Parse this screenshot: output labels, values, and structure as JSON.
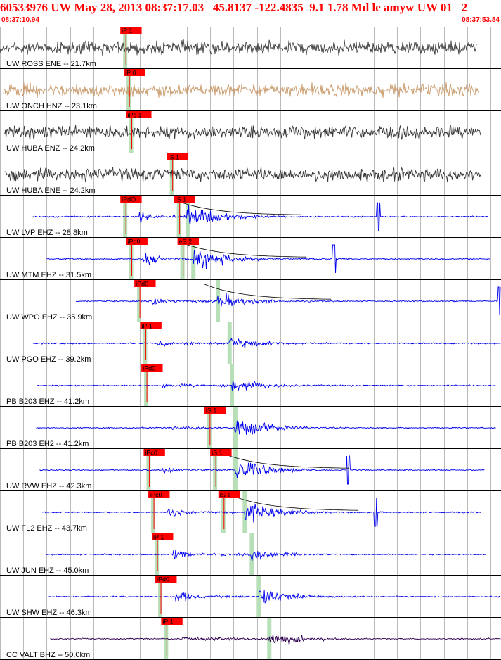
{
  "header": {
    "title": "60533976 UW May 28, 2013 08:37:17.03   45.8137 -122.4835  9.1 1.78 Md le amyw UW 01   2",
    "start_time": "08:37:10.94",
    "end_time": "08:37:53.84"
  },
  "colors": {
    "header_text": "#ff0000",
    "pick_flag": "#ff0000",
    "pick_band": "#b8e0b8",
    "trace_default": "#3a3a3a",
    "trace_blue": "#0000ee",
    "trace_tan": "#c89868",
    "trace_purple": "#300050",
    "grid": "#000000"
  },
  "chart_data": {
    "type": "seismogram",
    "time_window_utc": [
      "08:37:10.94",
      "08:37:53.84"
    ],
    "duration_s": 42.9,
    "grid_tick_interval_s": 2,
    "traces": [
      {
        "label": "UW ROSS ENE -- 21.7km",
        "distance_km": 21.7,
        "color": "#3a3a3a",
        "style": "noise",
        "start_s": 0.0,
        "end_s": 40.8,
        "picks": [
          {
            "label": "iP 1",
            "time_s": 10.3
          }
        ]
      },
      {
        "label": "UW ONCH HNZ -- 23.1km",
        "distance_km": 23.1,
        "color": "#c89868",
        "style": "noise",
        "start_s": 0.3,
        "end_s": 41.0,
        "picks": [
          {
            "label": "iP 0",
            "time_s": 10.6
          }
        ]
      },
      {
        "label": "UW HUBA ENZ -- 24.2km",
        "distance_km": 24.2,
        "color": "#3a3a3a",
        "style": "noise",
        "start_s": 0.4,
        "end_s": 41.2,
        "picks": [
          {
            "label": "iPc 1",
            "time_s": 10.8
          }
        ]
      },
      {
        "label": "UW HUBA ENE -- 24.2km",
        "distance_km": 24.2,
        "color": "#3a3a3a",
        "style": "noise",
        "start_s": 0.4,
        "end_s": 41.2,
        "picks": [
          {
            "label": "iS 1",
            "time_s": 14.3
          }
        ]
      },
      {
        "label": "UW LVP EHZ -- 28.8km",
        "distance_km": 28.8,
        "color": "#0000ee",
        "style": "quake",
        "start_s": 2.8,
        "end_s": 41.8,
        "p_s": 11.9,
        "s_s": 16.0,
        "amp_p": 0.5,
        "amp_s": 0.95,
        "spike_s": 32.4,
        "picks": [
          {
            "label": "iPdO",
            "time_s": 10.3
          },
          {
            "label": "iS 1",
            "time_s": 14.9
          }
        ]
      },
      {
        "label": "UW MTM EHZ -- 31.5km",
        "distance_km": 31.5,
        "color": "#0000ee",
        "style": "quake",
        "start_s": 4.0,
        "end_s": 42.0,
        "p_s": 12.3,
        "s_s": 16.5,
        "amp_p": 0.6,
        "amp_s": 0.95,
        "spike_s": 28.6,
        "picks": [
          {
            "label": "iPd0",
            "time_s": 10.8
          },
          {
            "label": "eS 2",
            "time_s": 15.2
          }
        ]
      },
      {
        "label": "UW WPO EHZ -- 35.9km",
        "distance_km": 35.9,
        "color": "#0000ee",
        "style": "quake",
        "start_s": 6.5,
        "end_s": 42.9,
        "p_s": 13.0,
        "s_s": 18.6,
        "amp_p": 0.45,
        "amp_s": 0.65,
        "spike_s": 42.8,
        "picks": [
          {
            "label": "iPd0",
            "time_s": 11.5
          }
        ]
      },
      {
        "label": "UW PGO EHZ -- 39.2km",
        "distance_km": 39.2,
        "color": "#0000ee",
        "style": "quake",
        "start_s": 2.8,
        "end_s": 42.9,
        "p_s": 13.5,
        "s_s": 19.6,
        "amp_p": 0.3,
        "amp_s": 0.55,
        "picks": [
          {
            "label": "iP 1",
            "time_s": 12.0
          }
        ]
      },
      {
        "label": "PB B203 EHZ -- 41.2km",
        "distance_km": 41.2,
        "color": "#0000ee",
        "style": "quake",
        "start_s": 3.1,
        "end_s": 42.5,
        "p_s": 13.8,
        "s_s": 19.8,
        "amp_p": 0.25,
        "amp_s": 0.55,
        "picks": [
          {
            "label": "iPd0",
            "time_s": 12.1
          }
        ]
      },
      {
        "label": "PB B203 EH2 -- 41.2km",
        "distance_km": 41.2,
        "color": "#0000ee",
        "style": "quake",
        "start_s": 3.1,
        "end_s": 42.5,
        "p_s": 13.8,
        "s_s": 20.1,
        "amp_p": 0.12,
        "amp_s": 0.8,
        "picks": [
          {
            "label": "iS 1",
            "time_s": 17.5
          }
        ]
      },
      {
        "label": "UW RVW EHZ -- 42.3km",
        "distance_km": 42.3,
        "color": "#0000ee",
        "style": "quake",
        "start_s": 3.4,
        "end_s": 41.5,
        "p_s": 13.9,
        "s_s": 20.1,
        "amp_p": 0.35,
        "amp_s": 0.95,
        "spike_s": 29.8,
        "picks": [
          {
            "label": "iPc0",
            "time_s": 12.3
          },
          {
            "label": "iS 1",
            "time_s": 18.0
          }
        ]
      },
      {
        "label": "UW FL2 EHZ -- 43.7km",
        "distance_km": 43.7,
        "color": "#0000ee",
        "style": "quake",
        "start_s": 3.6,
        "end_s": 41.2,
        "p_s": 14.3,
        "s_s": 20.9,
        "amp_p": 0.5,
        "amp_s": 0.85,
        "spike_s": 32.2,
        "picks": [
          {
            "label": "iPc0",
            "time_s": 12.7
          },
          {
            "label": "iS 1",
            "time_s": 18.7
          }
        ]
      },
      {
        "label": "UW JUN EHZ -- 45.0km",
        "distance_km": 45.0,
        "color": "#0000ee",
        "style": "quake",
        "start_s": 3.9,
        "end_s": 41.6,
        "p_s": 14.8,
        "s_s": 21.5,
        "amp_p": 0.6,
        "amp_s": 0.5,
        "picks": [
          {
            "label": "iP 1",
            "time_s": 13.0
          }
        ]
      },
      {
        "label": "UW SHW EHZ -- 46.3km",
        "distance_km": 46.3,
        "color": "#0000ee",
        "style": "quake",
        "start_s": 4.1,
        "end_s": 42.9,
        "p_s": 15.0,
        "s_s": 22.1,
        "amp_p": 0.7,
        "amp_s": 0.8,
        "picks": [
          {
            "label": "iPd0",
            "time_s": 13.3
          }
        ]
      },
      {
        "label": "CC VALT BHZ -- 50.0km",
        "distance_km": 50.0,
        "color": "#300050",
        "style": "quake",
        "start_s": 4.3,
        "end_s": 42.9,
        "p_s": 15.5,
        "s_s": 23.0,
        "amp_p": 0.3,
        "amp_s": 0.65,
        "picks": [
          {
            "label": "iP 1",
            "time_s": 13.8
          }
        ]
      }
    ]
  }
}
